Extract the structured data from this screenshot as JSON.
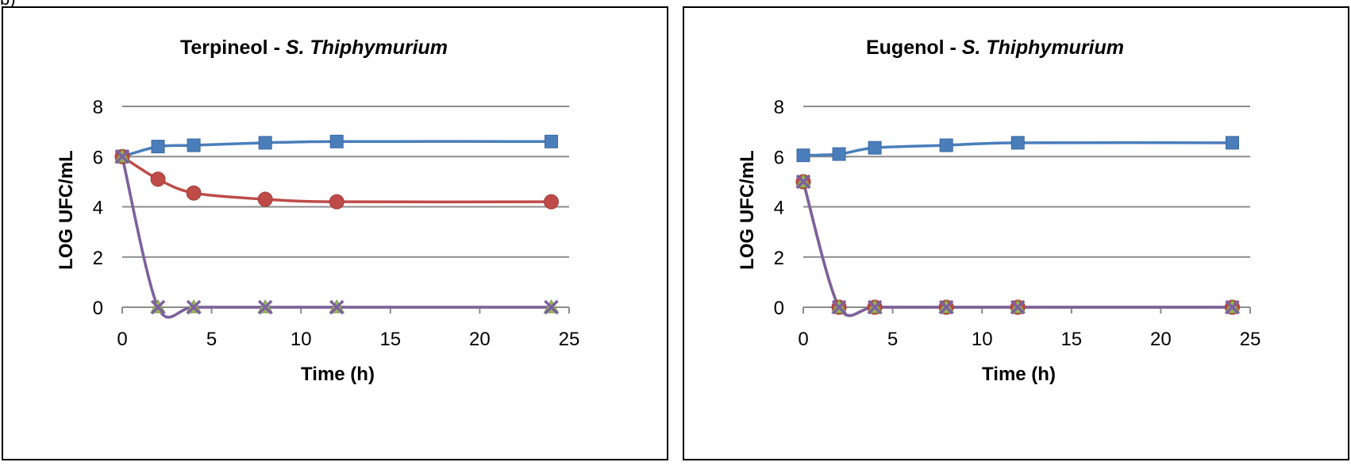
{
  "figure_label": "b)",
  "chart_data": [
    {
      "type": "line",
      "title": {
        "prefix": "Terpineol - ",
        "organism": "S. Thiphymurium"
      },
      "xlabel": "Time (h)",
      "ylabel": "LOG  UFC/mL",
      "xlim": [
        0,
        25
      ],
      "ylim": [
        0,
        8
      ],
      "xticks": [
        0,
        5,
        10,
        15,
        20,
        25
      ],
      "yticks": [
        0,
        2,
        4,
        6,
        8
      ],
      "grid": "horizontal",
      "legend": "none",
      "series": [
        {
          "color": "#4a7ebb",
          "marker": "square",
          "x": [
            0,
            2,
            4,
            8,
            12,
            24
          ],
          "y": [
            6.0,
            6.4,
            6.45,
            6.55,
            6.6,
            6.6
          ]
        },
        {
          "color": "#be4b48",
          "marker": "circle",
          "x": [
            0,
            2,
            4,
            8,
            12,
            24
          ],
          "y": [
            6.0,
            5.1,
            4.55,
            4.3,
            4.2,
            4.2
          ]
        },
        {
          "color": "#98b954",
          "marker": "triangle",
          "x": [
            0,
            2,
            4,
            8,
            12,
            24
          ],
          "y": [
            6.0,
            0,
            0,
            0,
            0,
            0
          ]
        },
        {
          "color": "#7d60a0",
          "marker": "x",
          "x": [
            0,
            2,
            4,
            8,
            12,
            24
          ],
          "y": [
            6.0,
            0,
            0,
            0,
            0,
            0
          ]
        }
      ]
    },
    {
      "type": "line",
      "title": {
        "prefix": "Eugenol - ",
        "organism": "S. Thiphymurium"
      },
      "xlabel": "Time (h)",
      "ylabel": "LOG  UFC/mL",
      "xlim": [
        0,
        25
      ],
      "ylim": [
        0,
        8
      ],
      "xticks": [
        0,
        5,
        10,
        15,
        20,
        25
      ],
      "yticks": [
        0,
        2,
        4,
        6,
        8
      ],
      "grid": "horizontal",
      "legend": "none",
      "series": [
        {
          "color": "#4a7ebb",
          "marker": "square",
          "x": [
            0,
            2,
            4,
            8,
            12,
            24
          ],
          "y": [
            6.05,
            6.1,
            6.35,
            6.45,
            6.55,
            6.55
          ]
        },
        {
          "color": "#be4b48",
          "marker": "circle",
          "x": [
            0,
            2,
            4,
            8,
            12,
            24
          ],
          "y": [
            5.0,
            0,
            0,
            0,
            0,
            0
          ]
        },
        {
          "color": "#98b954",
          "marker": "triangle",
          "x": [
            0,
            2,
            4,
            8,
            12,
            24
          ],
          "y": [
            5.0,
            0,
            0,
            0,
            0,
            0
          ]
        },
        {
          "color": "#7d60a0",
          "marker": "x",
          "x": [
            0,
            2,
            4,
            8,
            12,
            24
          ],
          "y": [
            5.0,
            0,
            0,
            0,
            0,
            0
          ]
        }
      ]
    }
  ]
}
